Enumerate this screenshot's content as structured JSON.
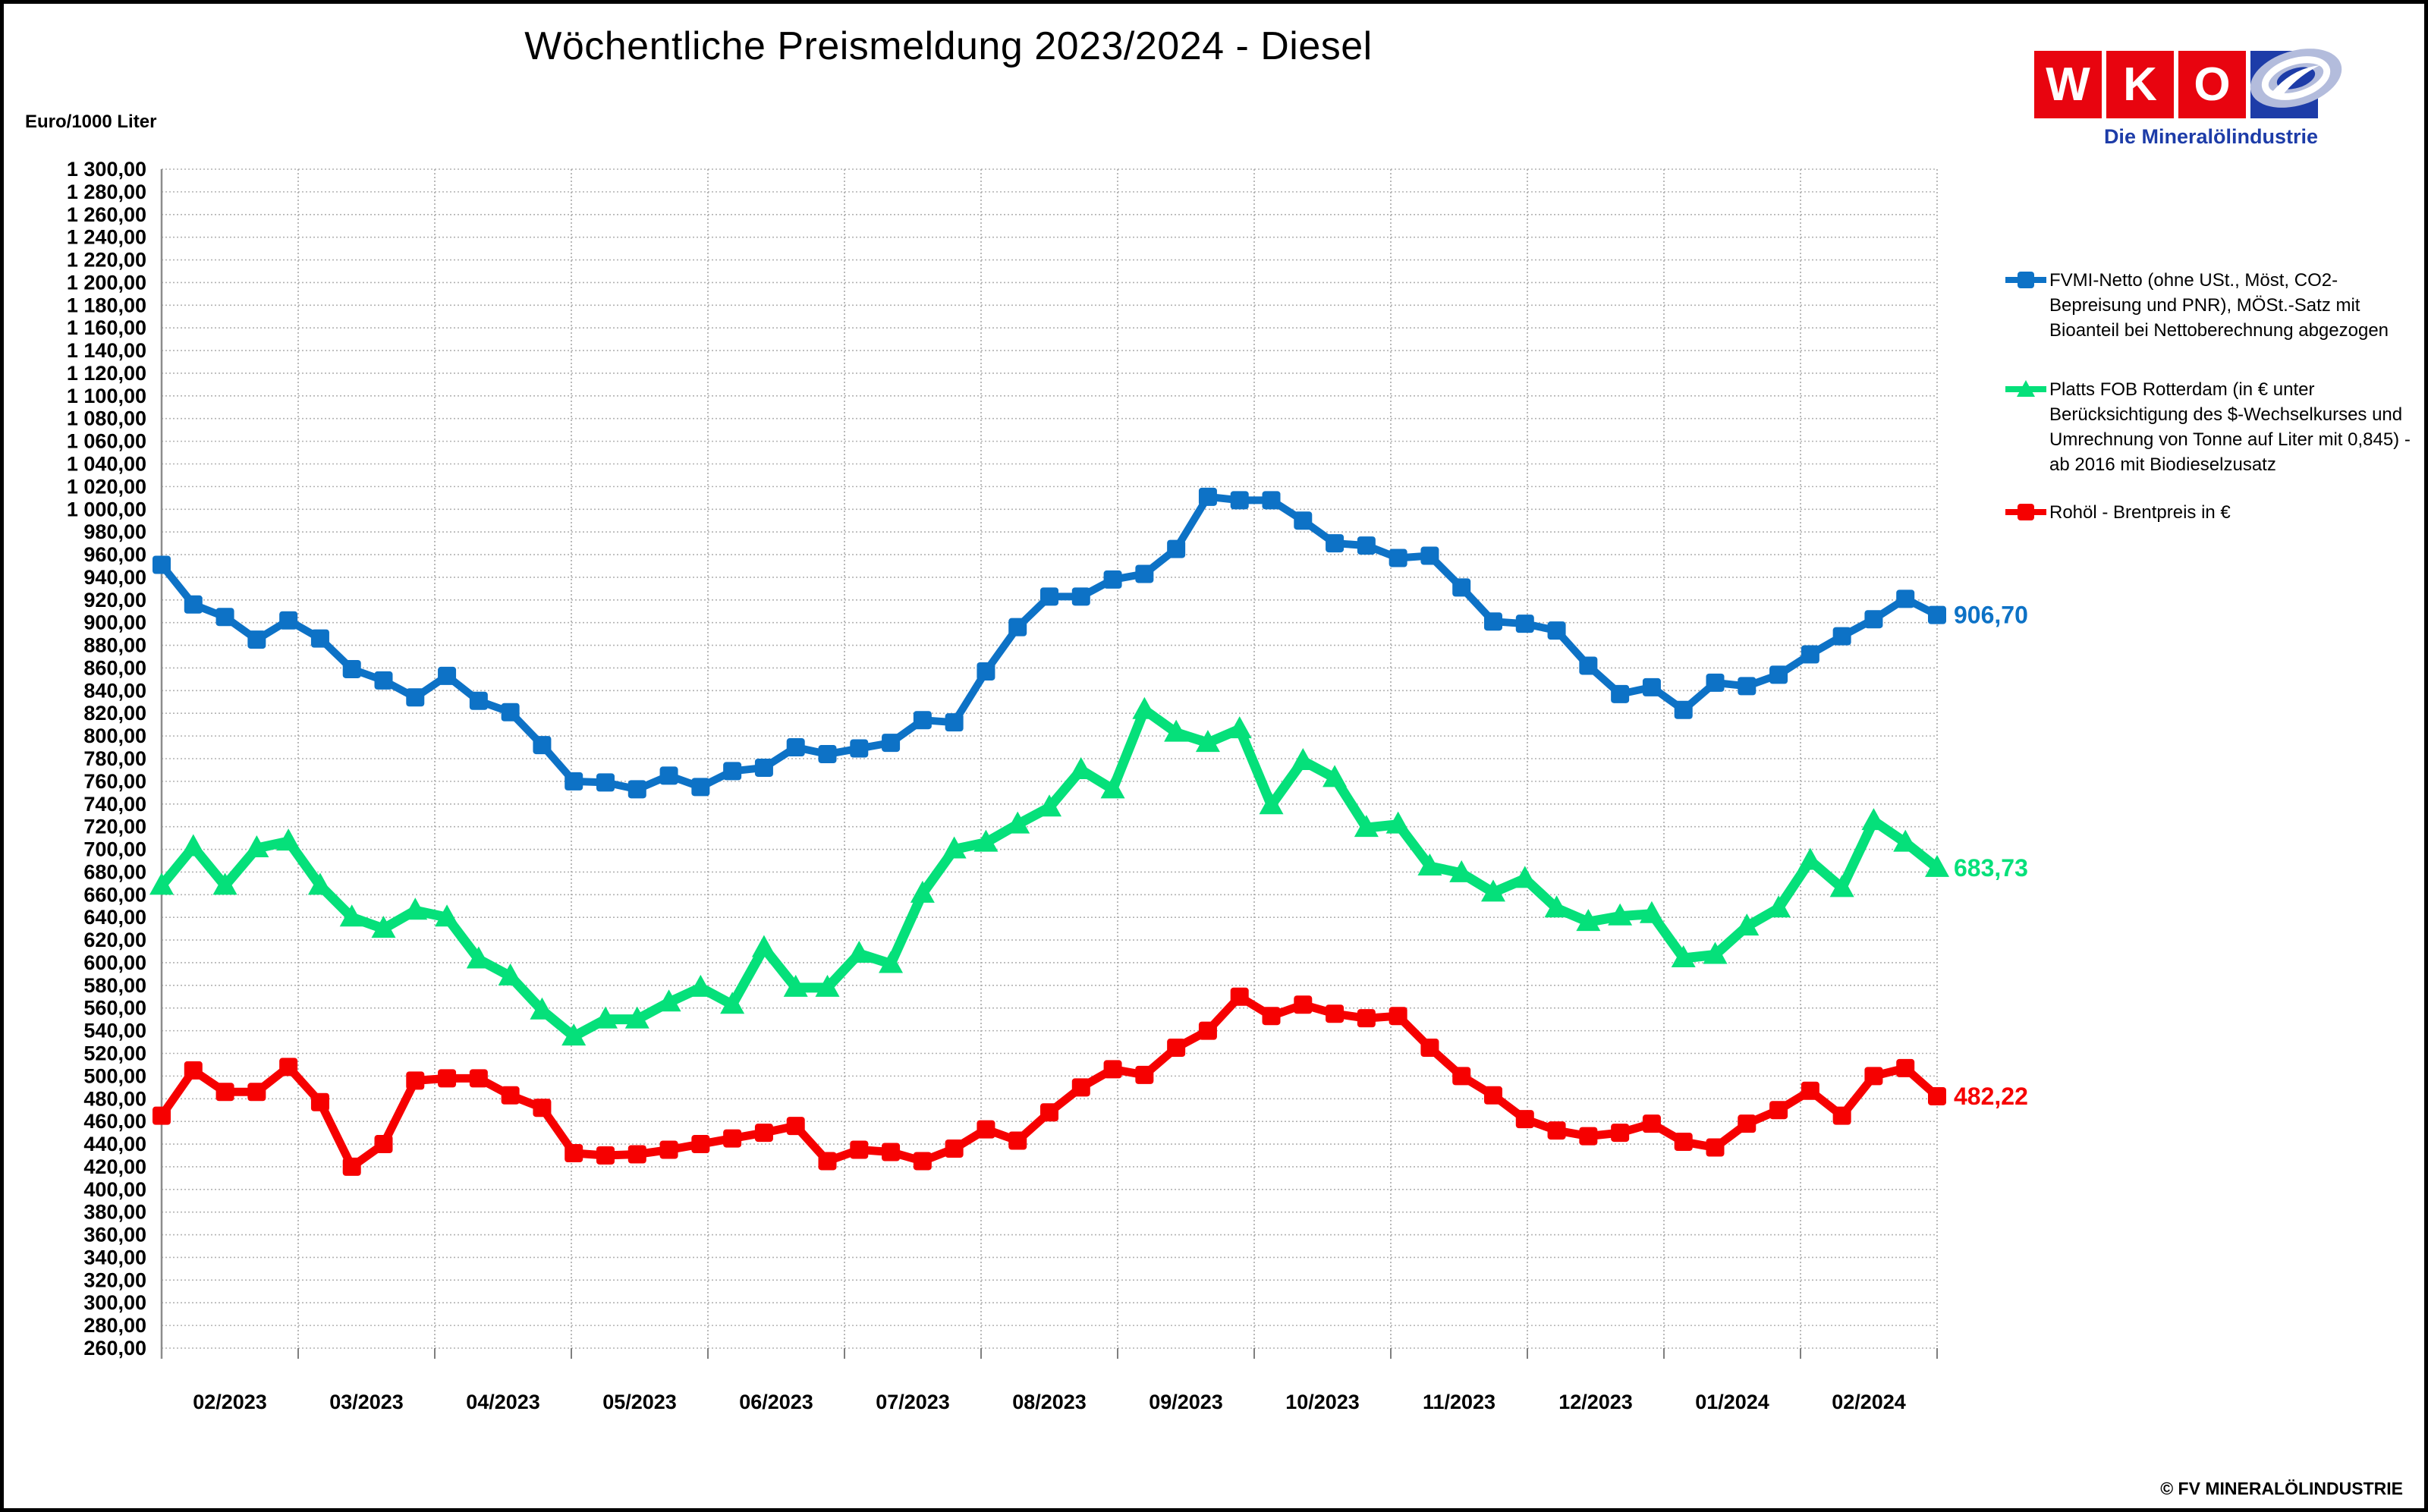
{
  "window": {
    "background": "#ffffff",
    "border_color": "#000000"
  },
  "header": {
    "title": "Wöchentliche Preismeldung  2023/2024 - Diesel",
    "y_axis_unit": "Euro/1000 Liter",
    "logo": {
      "letters": [
        "W",
        "K",
        "O"
      ],
      "tagline": "Die Mineralölindustrie",
      "square_red": "#e8040f",
      "square_blue": "#1d3ca8",
      "emblem_fill": "#b3bcdc"
    }
  },
  "legend": {
    "items": [
      {
        "series": "fvmi-netto",
        "text": "FVMI-Netto (ohne USt., Möst, CO2-Bepreisung und PNR), MÖSt.-Satz mit Bioanteil bei Nettoberechnung abgezogen"
      },
      {
        "series": "platts-fob-rotterdam",
        "text": "Platts FOB Rotterdam (in € unter Berücksichtigung des $-Wechselkurses und Umrechnung von Tonne auf Liter mit 0,845) - ab 2016 mit Biodieselzusatz"
      },
      {
        "series": "rohoel-brent",
        "text": "Rohöl - Brentpreis in €"
      }
    ]
  },
  "footer": {
    "copyright": "© FV MINERALÖLINDUSTRIE"
  },
  "chart_data": {
    "type": "line",
    "title": "Wöchentliche Preismeldung  2023/2024 - Diesel",
    "ylabel": "Euro/1000 Liter",
    "ylim": [
      260,
      1300
    ],
    "y_step": 20,
    "grid": true,
    "legend_position": "right",
    "x_unit": "weekly price reports, Feb 2023 - Feb 2024",
    "x_tick_labels": [
      "02/2023",
      "03/2023",
      "04/2023",
      "05/2023",
      "06/2023",
      "07/2023",
      "08/2023",
      "09/2023",
      "10/2023",
      "11/2023",
      "12/2023",
      "01/2024",
      "02/2024"
    ],
    "series": [
      {
        "name": "FVMI-Netto (ohne USt., Möst, CO2-Bepreisung und PNR), MÖSt.-Satz mit Bioanteil bei Nettoberechnung abgezogen",
        "color": "#0d72c6",
        "marker": "square",
        "end_label": "906,70",
        "values": [
          951,
          916,
          905,
          885,
          902,
          886,
          859,
          849,
          834,
          853,
          831,
          821,
          792,
          760,
          759,
          753,
          765,
          755,
          769,
          772,
          790,
          784,
          789,
          794,
          814,
          812,
          857,
          896,
          923,
          923,
          938,
          943,
          965,
          1011,
          1008,
          1008,
          990,
          970,
          968,
          957,
          959,
          931,
          901,
          899,
          893,
          862,
          837,
          843,
          823,
          847,
          844,
          854,
          872,
          888,
          903,
          921,
          906.7
        ]
      },
      {
        "name": "Platts FOB Rotterdam (in € unter Berücksichtigung des $-Wechselkurses und Umrechnung von Tonne auf Liter mit 0,845) - ab 2016 mit Biodieselzusatz",
        "color": "#05e07a",
        "marker": "triangle",
        "end_label": "683,73",
        "values": [
          668,
          702,
          668,
          701,
          707,
          668,
          640,
          630,
          646,
          640,
          603,
          588,
          558,
          535,
          550,
          550,
          565,
          578,
          563,
          613,
          578,
          578,
          608,
          599,
          661,
          700,
          706,
          722,
          737,
          770,
          753,
          823,
          803,
          794,
          806,
          739,
          778,
          763,
          719,
          722,
          685,
          679,
          662,
          674,
          648,
          636,
          641,
          643,
          604,
          607,
          632,
          648,
          690,
          666,
          725,
          706,
          683.73
        ]
      },
      {
        "name": "Rohöl - Brentpreis in €",
        "color": "#f60000",
        "marker": "square",
        "end_label": "482,22",
        "values": [
          465,
          505,
          486,
          486,
          508,
          477,
          420,
          440,
          496,
          498,
          498,
          483,
          472,
          432,
          430,
          431,
          435,
          440,
          445,
          450,
          456,
          425,
          435,
          433,
          425,
          436,
          453,
          443,
          468,
          490,
          506,
          501,
          525,
          540,
          570,
          553,
          563,
          555,
          551,
          553,
          525,
          500,
          483,
          462,
          452,
          447,
          450,
          458,
          442,
          437,
          458,
          470,
          487,
          465,
          500,
          507,
          482.22
        ]
      }
    ]
  }
}
